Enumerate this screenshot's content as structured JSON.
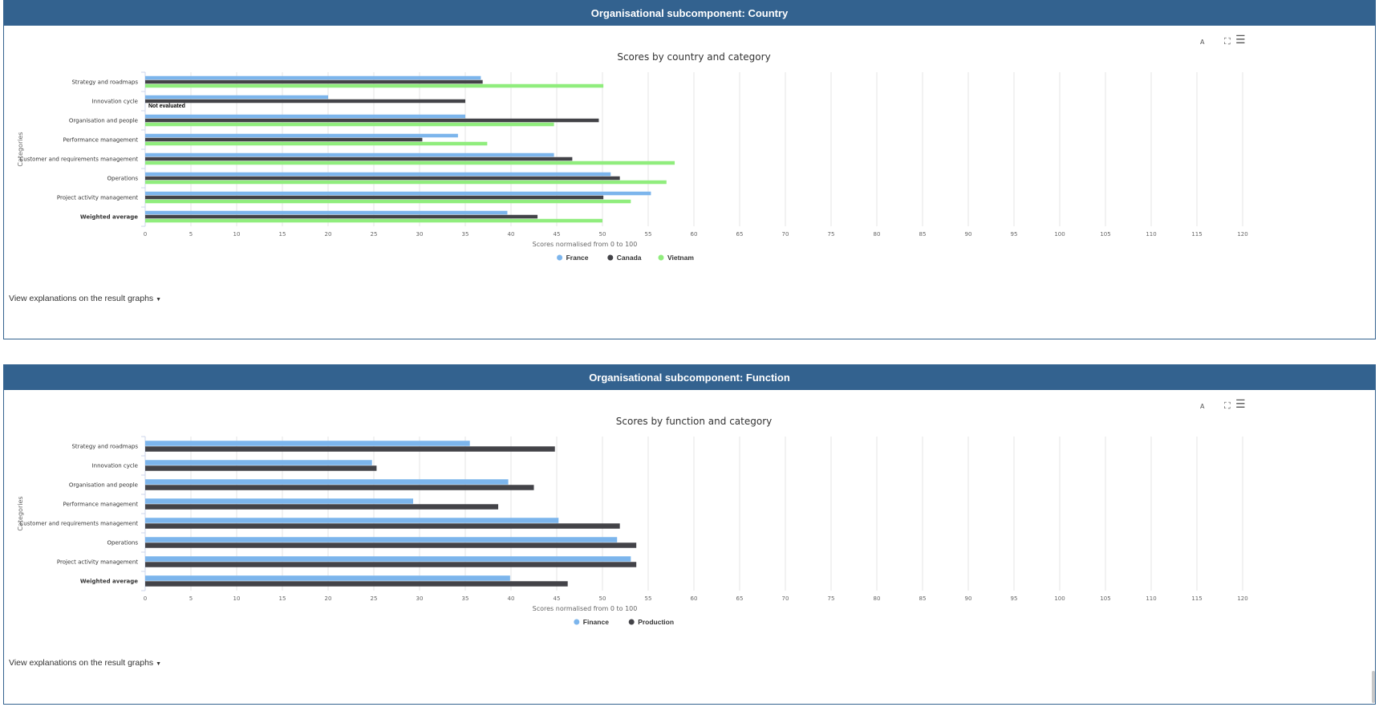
{
  "panels": [
    {
      "header": "Organisational subcomponent: Country",
      "explain_label": "View explanations on the result graphs",
      "toolbar": {
        "font_label": "A"
      },
      "chart_data": {
        "type": "bar",
        "orientation": "horizontal",
        "title": "Scores by country and category",
        "xlabel": "Scores normalised from 0 to 100",
        "ylabel": "Categories",
        "xlim": [
          0,
          120
        ],
        "x_ticks": [
          "0",
          "5",
          "10",
          "15",
          "20",
          "25",
          "30",
          "35",
          "40",
          "45",
          "50",
          "55",
          "60",
          "65",
          "70",
          "75",
          "80",
          "85",
          "90",
          "95",
          "100",
          "105",
          "110",
          "115",
          "120"
        ],
        "grid": true,
        "legend_position": "bottom-center",
        "categories": [
          "Strategy and roadmaps",
          "Innovation cycle",
          "Organisation and people",
          "Performance management",
          "Customer and requirements management",
          "Operations",
          "Project activity management",
          "Weighted average"
        ],
        "bold_category": "Weighted average",
        "series": [
          {
            "name": "France",
            "color": "#7cb5ec",
            "values": [
              36.7,
              20,
              35,
              34.2,
              44.7,
              50.9,
              55.3,
              39.6
            ]
          },
          {
            "name": "Canada",
            "color": "#434348",
            "values": [
              36.9,
              35,
              49.6,
              30.3,
              46.7,
              51.9,
              50.1,
              42.9
            ]
          },
          {
            "name": "Vietnam",
            "color": "#90ed7d",
            "values": [
              50.1,
              null,
              44.7,
              37.4,
              57.9,
              57,
              53.1,
              50
            ]
          }
        ],
        "annotations": [
          {
            "category": "Innovation cycle",
            "text": "Not evaluated"
          }
        ]
      }
    },
    {
      "header": "Organisational subcomponent: Function",
      "explain_label": "View explanations on the result graphs",
      "toolbar": {
        "font_label": "A"
      },
      "chart_data": {
        "type": "bar",
        "orientation": "horizontal",
        "title": "Scores by function and category",
        "xlabel": "Scores normalised from 0 to 100",
        "ylabel": "Categories",
        "xlim": [
          0,
          120
        ],
        "x_ticks": [
          "0",
          "5",
          "10",
          "15",
          "20",
          "25",
          "30",
          "35",
          "40",
          "45",
          "50",
          "55",
          "60",
          "65",
          "70",
          "75",
          "80",
          "85",
          "90",
          "95",
          "100",
          "105",
          "110",
          "115",
          "120"
        ],
        "grid": true,
        "legend_position": "bottom-center",
        "categories": [
          "Strategy and roadmaps",
          "Innovation cycle",
          "Organisation and people",
          "Performance management",
          "Customer and requirements management",
          "Operations",
          "Project activity management",
          "Weighted average"
        ],
        "bold_category": "Weighted average",
        "series": [
          {
            "name": "Finance",
            "color": "#7cb5ec",
            "values": [
              35.5,
              24.8,
              39.7,
              29.3,
              45.2,
              51.6,
              53.1,
              39.9
            ]
          },
          {
            "name": "Production",
            "color": "#434348",
            "values": [
              44.8,
              25.3,
              42.5,
              38.6,
              51.9,
              53.7,
              53.7,
              46.2
            ]
          }
        ],
        "annotations": []
      }
    }
  ]
}
